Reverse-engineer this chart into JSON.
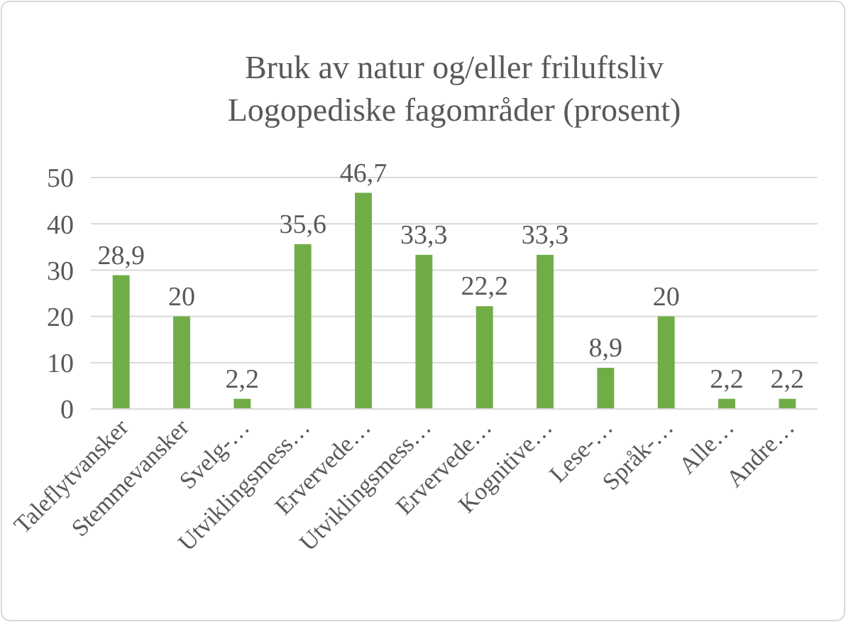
{
  "chart_data": {
    "type": "bar",
    "title": "Bruk av natur og/eller friluftsliv\nLogopediske fagområder (prosent)",
    "categories": [
      "Taleflytvansker",
      "Stemmevansker",
      "Svelg-…",
      "Utviklingsmess…",
      "Ervervede…",
      "Utviklingsmess…",
      "Ervervede…",
      "Kognitive…",
      "Lese-…",
      "Språk-…",
      "Alle…",
      "Andre…"
    ],
    "values": [
      28.9,
      20,
      2.2,
      35.6,
      46.7,
      33.3,
      22.2,
      33.3,
      8.9,
      20,
      2.2,
      2.2
    ],
    "value_labels": [
      "28,9",
      "20",
      "2,2",
      "35,6",
      "46,7",
      "33,3",
      "22,2",
      "33,3",
      "8,9",
      "20",
      "2,2",
      "2,2"
    ],
    "color": "#70ad47",
    "ylim": [
      0,
      50
    ],
    "yticks": [
      0,
      10,
      20,
      30,
      40,
      50
    ],
    "grid": "y"
  }
}
